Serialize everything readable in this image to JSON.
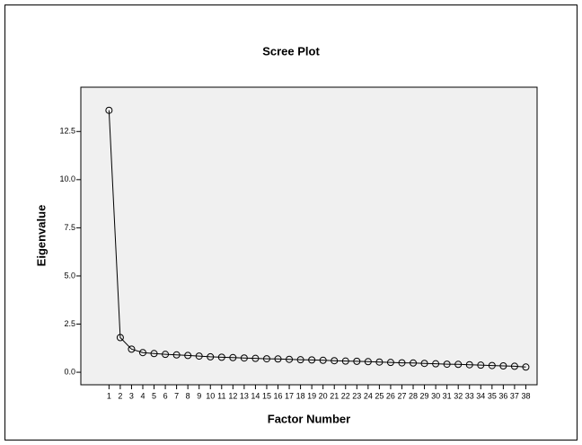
{
  "chart_data": {
    "type": "line",
    "title": "Scree Plot",
    "x_label": "Factor Number",
    "y_label": "Eigenvalue",
    "x": [
      1,
      2,
      3,
      4,
      5,
      6,
      7,
      8,
      9,
      10,
      11,
      12,
      13,
      14,
      15,
      16,
      17,
      18,
      19,
      20,
      21,
      22,
      23,
      24,
      25,
      26,
      27,
      28,
      29,
      30,
      31,
      32,
      33,
      34,
      35,
      36,
      37,
      38
    ],
    "series": [
      {
        "color": "#000000",
        "values": [
          13.6,
          1.8,
          1.2,
          1.02,
          0.97,
          0.93,
          0.9,
          0.87,
          0.84,
          0.8,
          0.78,
          0.76,
          0.74,
          0.72,
          0.7,
          0.69,
          0.67,
          0.65,
          0.64,
          0.62,
          0.6,
          0.58,
          0.57,
          0.55,
          0.53,
          0.51,
          0.49,
          0.48,
          0.46,
          0.44,
          0.42,
          0.41,
          0.39,
          0.37,
          0.35,
          0.33,
          0.31,
          0.27
        ]
      }
    ],
    "xlim": [
      -1.5,
      39
    ],
    "xticks": [
      1,
      2,
      3,
      4,
      5,
      6,
      7,
      8,
      9,
      10,
      11,
      12,
      13,
      14,
      15,
      16,
      17,
      18,
      19,
      20,
      21,
      22,
      23,
      24,
      25,
      26,
      27,
      28,
      29,
      30,
      31,
      32,
      33,
      34,
      35,
      36,
      37,
      38
    ],
    "ylim": [
      -0.65,
      14.8
    ],
    "yticks": [
      {
        "value": 0,
        "label": "0.0"
      },
      2.5,
      {
        "value": 5,
        "label": "5.0"
      },
      7.5,
      {
        "value": 10,
        "label": "10.0"
      },
      12.5
    ],
    "plot_background": "#f0f0f0",
    "grid": false
  }
}
